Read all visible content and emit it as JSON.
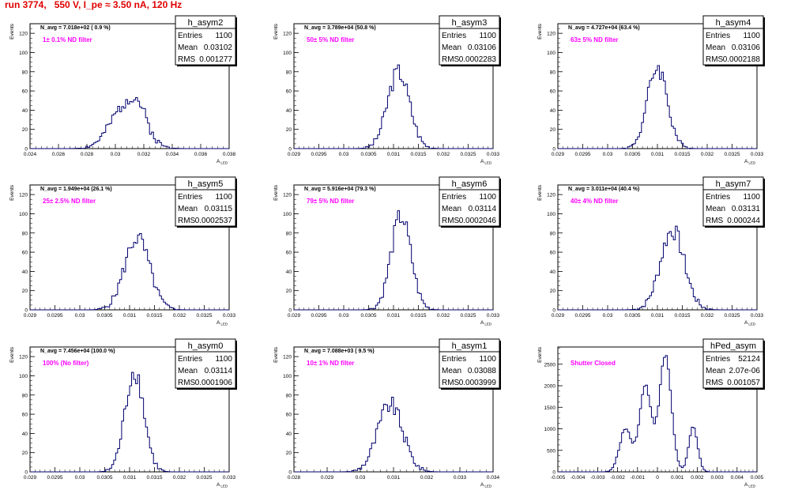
{
  "header": {
    "title": "run 3774,   550 V, I_pe ≈ 3.50 nA, 120 Hz"
  },
  "colors": {
    "histogram": "#00006e",
    "annotation": "#ff00ff",
    "title": "#e00000",
    "frame": "#000000"
  },
  "stats_labels": {
    "entries": "Entries",
    "mean": "Mean",
    "rms": "RMS"
  },
  "ylabel": "Events",
  "xlabel": "A_LED",
  "chart_data": [
    {
      "type": "bar",
      "name": "h_asym2",
      "entries": "1100",
      "mean": "0.03102",
      "rms": "0.001277",
      "navg": "N_avg = 7.018e+02 ( 0.9 %)",
      "filter": "1± 0.1% ND filter",
      "xlim": [
        0.024,
        0.038
      ],
      "xticks": [
        "0.024",
        "0.026",
        "0.028",
        "0.03",
        "0.032",
        "0.034",
        "0.036",
        "0.038"
      ],
      "ylim": [
        0,
        130
      ],
      "yticks": [
        0,
        20,
        40,
        60,
        80,
        100,
        120
      ],
      "peaks": [
        {
          "x": 0.0308,
          "y": 45,
          "w": 0.0011
        },
        {
          "x": 0.0316,
          "y": 16,
          "w": 0.0006
        }
      ],
      "seed": 2
    },
    {
      "type": "bar",
      "name": "h_asym3",
      "entries": "1100",
      "mean": "0.03106",
      "rms": "0.0002283",
      "navg": "N_avg = 3.789e+04 (50.8 %)",
      "filter": "50± 5% ND filter",
      "xlim": [
        0.029,
        0.033
      ],
      "xticks": [
        "0.029",
        "0.0295",
        "0.03",
        "0.0305",
        "0.031",
        "0.0315",
        "0.032",
        "0.0325",
        "0.033"
      ],
      "ylim": [
        0,
        130
      ],
      "yticks": [
        0,
        20,
        40,
        60,
        80,
        100,
        120
      ],
      "peaks": [
        {
          "x": 0.0311,
          "y": 80,
          "w": 0.00022
        }
      ],
      "seed": 3
    },
    {
      "type": "bar",
      "name": "h_asym4",
      "entries": "1100",
      "mean": "0.03106",
      "rms": "0.0002188",
      "navg": "N_avg = 4.727e+04 (63.4 %)",
      "filter": "63± 5% ND filter",
      "xlim": [
        0.029,
        0.033
      ],
      "xticks": [
        "0.029",
        "0.0295",
        "0.03",
        "0.0305",
        "0.031",
        "0.0315",
        "0.032",
        "0.0325",
        "0.033"
      ],
      "ylim": [
        0,
        130
      ],
      "yticks": [
        0,
        20,
        40,
        60,
        80,
        100,
        120
      ],
      "peaks": [
        {
          "x": 0.031,
          "y": 85,
          "w": 0.0002
        }
      ],
      "seed": 4
    },
    {
      "type": "bar",
      "name": "h_asym5",
      "entries": "1100",
      "mean": "0.03115",
      "rms": "0.0002537",
      "navg": "N_avg = 1.949e+04 (26.1 %)",
      "filter": "25± 2.5% ND filter",
      "xlim": [
        0.029,
        0.033
      ],
      "xticks": [
        "0.029",
        "0.0295",
        "0.03",
        "0.0305",
        "0.031",
        "0.0315",
        "0.032",
        "0.0325",
        "0.033"
      ],
      "ylim": [
        0,
        130
      ],
      "yticks": [
        0,
        20,
        40,
        60,
        80,
        100,
        120
      ],
      "peaks": [
        {
          "x": 0.03115,
          "y": 75,
          "w": 0.00025
        }
      ],
      "seed": 5
    },
    {
      "type": "bar",
      "name": "h_asym6",
      "entries": "1100",
      "mean": "0.03114",
      "rms": "0.0002046",
      "navg": "N_avg = 5.916e+04 (79.3 %)",
      "filter": "79± 5% ND filter",
      "xlim": [
        0.029,
        0.033
      ],
      "xticks": [
        "0.029",
        "0.0295",
        "0.03",
        "0.0305",
        "0.031",
        "0.0315",
        "0.032",
        "0.0325",
        "0.033"
      ],
      "ylim": [
        0,
        130
      ],
      "yticks": [
        0,
        20,
        40,
        60,
        80,
        100,
        120
      ],
      "peaks": [
        {
          "x": 0.03115,
          "y": 97,
          "w": 0.0002
        }
      ],
      "seed": 6
    },
    {
      "type": "bar",
      "name": "h_asym7",
      "entries": "1100",
      "mean": "0.03131",
      "rms": "0.000244",
      "navg": "N_avg = 3.011e+04 (40.4 %)",
      "filter": "40± 4% ND filter",
      "xlim": [
        0.029,
        0.033
      ],
      "xticks": [
        "0.029",
        "0.0295",
        "0.03",
        "0.0305",
        "0.031",
        "0.0315",
        "0.032",
        "0.0325",
        "0.033"
      ],
      "ylim": [
        0,
        130
      ],
      "yticks": [
        0,
        20,
        40,
        60,
        80,
        100,
        120
      ],
      "peaks": [
        {
          "x": 0.0313,
          "y": 83,
          "w": 0.00024
        }
      ],
      "seed": 7
    },
    {
      "type": "bar",
      "name": "h_asym0",
      "entries": "1100",
      "mean": "0.03114",
      "rms": "0.0001906",
      "navg": "N_avg = 7.456e+04 (100.0 %)",
      "filter": "100% (No filter)",
      "xlim": [
        0.029,
        0.033
      ],
      "xticks": [
        "0.029",
        "0.0295",
        "0.03",
        "0.0305",
        "0.031",
        "0.0315",
        "0.032",
        "0.0325",
        "0.033"
      ],
      "ylim": [
        0,
        130
      ],
      "yticks": [
        0,
        20,
        40,
        60,
        80,
        100,
        120
      ],
      "peaks": [
        {
          "x": 0.0311,
          "y": 105,
          "w": 0.00019
        }
      ],
      "seed": 8
    },
    {
      "type": "bar",
      "name": "h_asym1",
      "entries": "1100",
      "mean": "0.03088",
      "rms": "0.0003999",
      "navg": "N_avg = 7.088e+03 ( 9.5 %)",
      "filter": "10± 1% ND filter",
      "xlim": [
        0.028,
        0.034
      ],
      "xticks": [
        "0.028",
        "0.029",
        "0.03",
        "0.031",
        "0.032",
        "0.033",
        "0.034"
      ],
      "ylim": [
        0,
        130
      ],
      "yticks": [
        0,
        20,
        40,
        60,
        80,
        100,
        120
      ],
      "peaks": [
        {
          "x": 0.0309,
          "y": 70,
          "w": 0.00038
        }
      ],
      "seed": 9
    },
    {
      "type": "bar",
      "name": "hPed_asym",
      "entries": "52124",
      "mean": "2.07e-06",
      "rms": "0.001057",
      "navg": "",
      "filter": "Shutter Closed",
      "xlim": [
        -0.005,
        0.005
      ],
      "xticks": [
        "-0.005",
        "-0.004",
        "-0.003",
        "-0.002",
        "-0.001",
        "0",
        "0.001",
        "0.002",
        "0.003",
        "0.004",
        "0.005"
      ],
      "ylim": [
        0,
        2900
      ],
      "yticks": [
        0,
        500,
        1000,
        1500,
        2000,
        2500
      ],
      "peaks": [
        {
          "x": -0.0016,
          "y": 1000,
          "w": 0.0003
        },
        {
          "x": -0.0006,
          "y": 2000,
          "w": 0.0003
        },
        {
          "x": 0.0004,
          "y": 2700,
          "w": 0.0003
        },
        {
          "x": 0.0018,
          "y": 1050,
          "w": 0.00022
        }
      ],
      "seed": 10
    }
  ]
}
